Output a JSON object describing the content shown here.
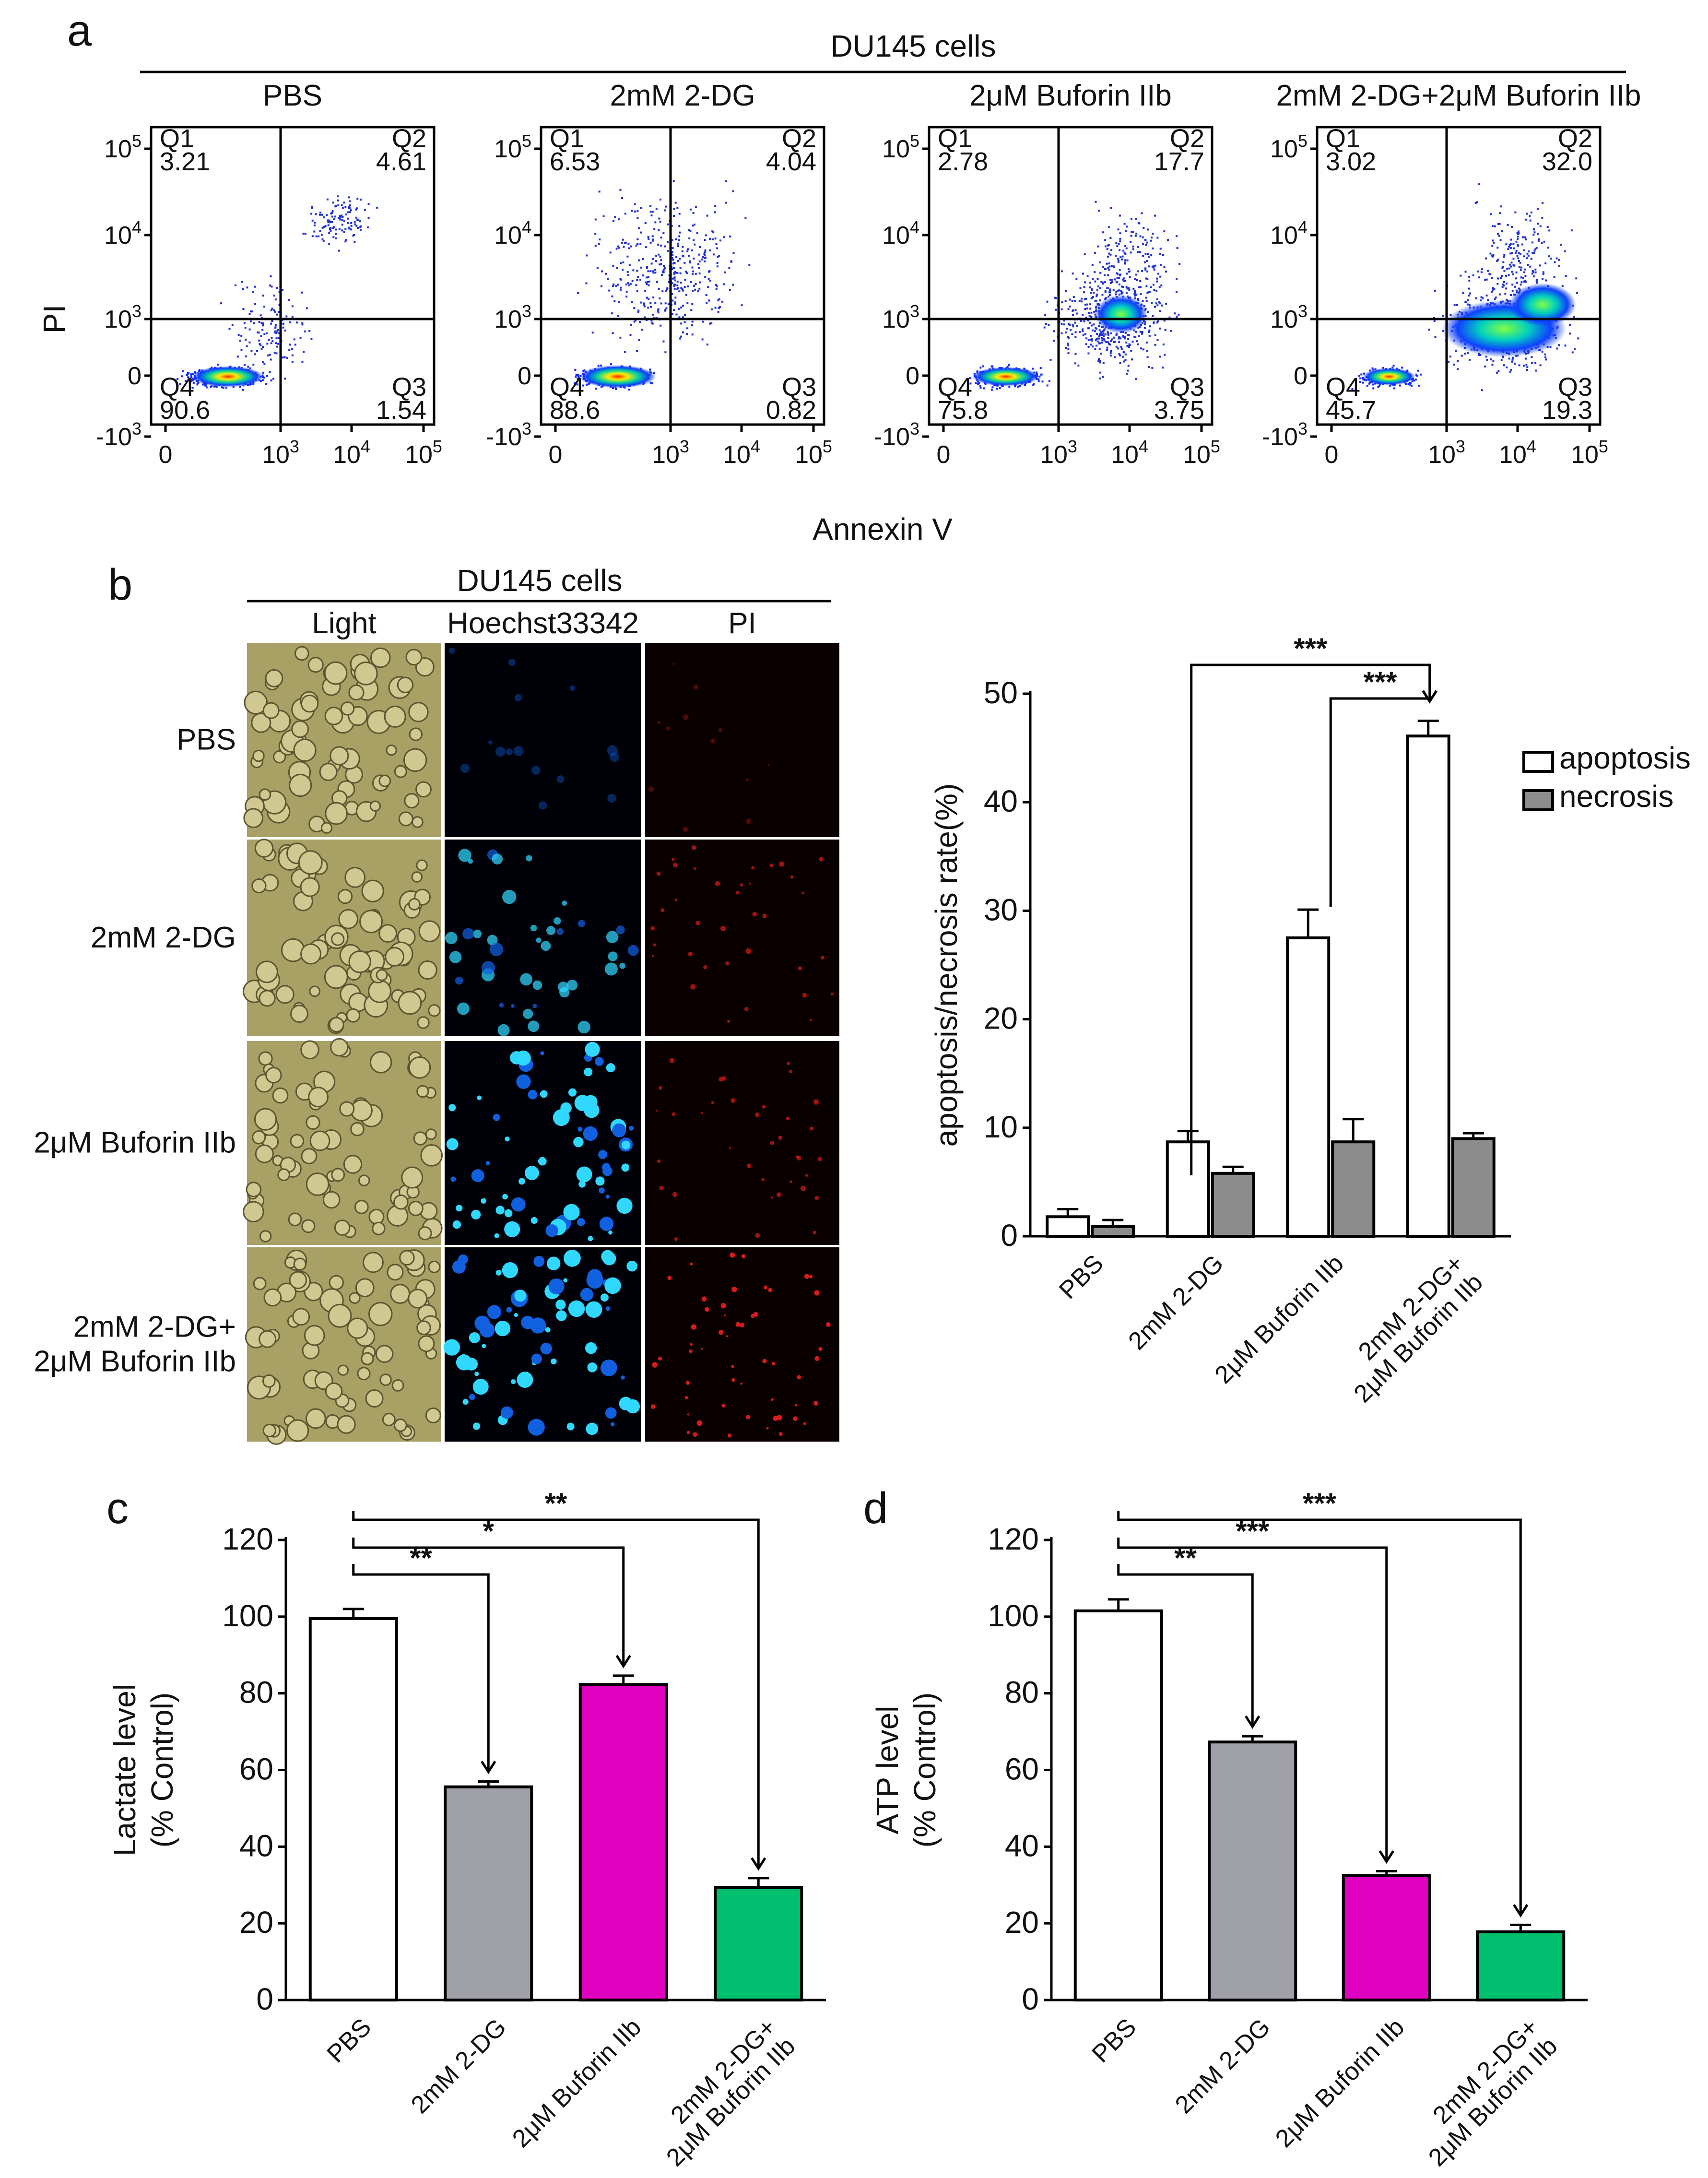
{
  "panels": {
    "a": {
      "label": "a",
      "title": "DU145 cells",
      "x_axis_label": "Annexin V",
      "y_axis_label": "PI",
      "y_ticks": [
        "10^5",
        "10^4",
        "10^3",
        "0",
        "-10^3"
      ],
      "x_ticks": [
        "0",
        "10^3",
        "10^4",
        "10^5"
      ],
      "plots": [
        {
          "condition": "PBS",
          "Q1": "3.21",
          "Q2": "4.61",
          "Q3": "1.54",
          "Q4": "90.6"
        },
        {
          "condition": "2mM 2-DG",
          "Q1": "6.53",
          "Q2": "4.04",
          "Q3": "0.82",
          "Q4": "88.6"
        },
        {
          "condition": "2μM Buforin IIb",
          "Q1": "2.78",
          "Q2": "17.7",
          "Q3": "3.75",
          "Q4": "75.8"
        },
        {
          "condition": "2mM 2-DG+2μM Buforin IIb",
          "Q1": "3.02",
          "Q2": "32.0",
          "Q3": "19.3",
          "Q4": "45.7"
        }
      ]
    },
    "b": {
      "label": "b",
      "micro_title": "DU145 cells",
      "columns": [
        "Light",
        "Hoechst33342",
        "PI"
      ],
      "rows": [
        "PBS",
        "2mM 2-DG",
        "2μM Buforin IIb",
        "2mM 2-DG+\n2μM Buforin IIb"
      ]
    },
    "c": {
      "label": "c"
    },
    "d": {
      "label": "d"
    }
  },
  "chart_data": [
    {
      "panel": "b",
      "type": "bar",
      "categories": [
        "PBS",
        "2mM 2-DG",
        "2μM Buforin IIb",
        "2mM 2-DG+\n2μM Buforin IIb"
      ],
      "series": [
        {
          "name": "apoptosis",
          "color": "#ffffff",
          "values": [
            1.8,
            8.7,
            27.5,
            46.1
          ],
          "errors": [
            0.7,
            1.0,
            2.6,
            1.4
          ]
        },
        {
          "name": "necrosis",
          "color": "#8c8c8c",
          "values": [
            0.9,
            5.8,
            8.7,
            9.0
          ],
          "errors": [
            0.6,
            0.6,
            2.1,
            0.5
          ]
        }
      ],
      "ylabel": "apoptosis/necrosis rate(%)",
      "ylim": [
        0,
        50
      ],
      "yticks": [
        0,
        10,
        20,
        30,
        40,
        50
      ],
      "legend": "top-right",
      "significance": [
        {
          "from": "2mM 2-DG",
          "to": "2mM 2-DG+\n2μM Buforin IIb",
          "label": "***"
        },
        {
          "from": "2μM Buforin IIb",
          "to": "2mM 2-DG+\n2μM Buforin IIb",
          "label": "***"
        }
      ]
    },
    {
      "panel": "c",
      "type": "bar",
      "categories": [
        "PBS",
        "2mM 2-DG",
        "2μM Buforin IIb",
        "2mM 2-DG+\n2μM Buforin IIb"
      ],
      "values": [
        99.5,
        55.6,
        82.3,
        29.4
      ],
      "errors": [
        2.5,
        1.4,
        2.3,
        2.4
      ],
      "colors": [
        "#ffffff",
        "#a0a0a8",
        "#e000c0",
        "#00c070"
      ],
      "ylabel": "Lactate level\n(% Control)",
      "ylim": [
        0,
        120
      ],
      "yticks": [
        0,
        20,
        40,
        60,
        80,
        100,
        120
      ],
      "significance": [
        {
          "from": "PBS",
          "to": "2mM 2-DG",
          "label": "**"
        },
        {
          "from": "PBS",
          "to": "2μM Buforin IIb",
          "label": "*"
        },
        {
          "from": "PBS",
          "to": "2mM 2-DG+\n2μM Buforin IIb",
          "label": "**"
        }
      ]
    },
    {
      "panel": "d",
      "type": "bar",
      "categories": [
        "PBS",
        "2mM 2-DG",
        "2μM Buforin IIb",
        "2mM 2-DG+\n2μM Buforin IIb"
      ],
      "values": [
        101.5,
        67.3,
        32.5,
        17.8
      ],
      "errors": [
        3.0,
        1.5,
        1.1,
        1.8
      ],
      "colors": [
        "#ffffff",
        "#a0a0a8",
        "#e000c0",
        "#00c070"
      ],
      "ylabel": "ATP level\n(% Control)",
      "ylim": [
        0,
        120
      ],
      "yticks": [
        0,
        20,
        40,
        60,
        80,
        100,
        120
      ],
      "significance": [
        {
          "from": "PBS",
          "to": "2mM 2-DG",
          "label": "**"
        },
        {
          "from": "PBS",
          "to": "2μM Buforin IIb",
          "label": "***"
        },
        {
          "from": "PBS",
          "to": "2mM 2-DG+\n2μM Buforin IIb",
          "label": "***"
        }
      ]
    }
  ]
}
